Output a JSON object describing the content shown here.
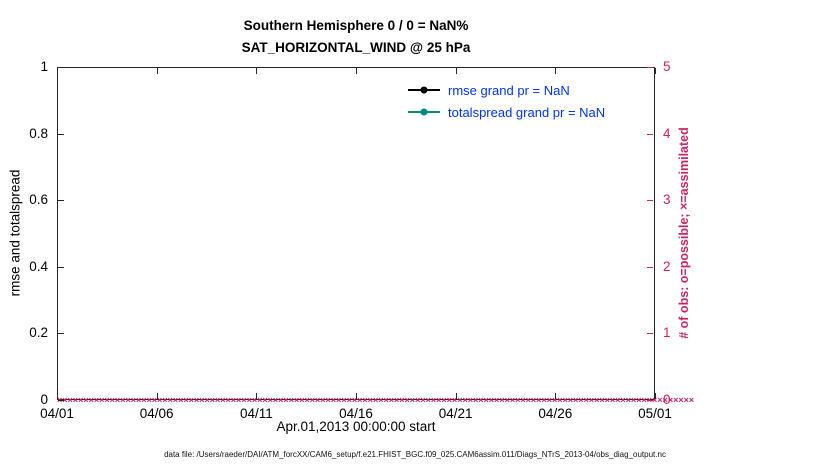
{
  "title": {
    "line1": "Southern Hemisphere 0 / 0 = NaN%",
    "line2": "SAT_HORIZONTAL_WIND @ 25 hPa"
  },
  "colors": {
    "axis_black": "#262626",
    "obs_pink": "#cc2366",
    "legend_text_blue": "#0033ee",
    "rmse_black": "#000000",
    "totalspread_teal": "#008b80"
  },
  "legend": [
    {
      "label": "rmse grand pr = NaN",
      "color": "#000000"
    },
    {
      "label": "totalspread grand pr = NaN",
      "color": "#008b80"
    }
  ],
  "axes": {
    "left": {
      "label": "rmse and totalspread",
      "ticks": [
        "0",
        "0.2",
        "0.4",
        "0.6",
        "0.8",
        "1"
      ],
      "range": [
        0,
        1
      ]
    },
    "right": {
      "label": "# of obs: o=possible; ×=assimilated",
      "ticks": [
        "0",
        "1",
        "2",
        "3",
        "4",
        "5"
      ],
      "range": [
        0,
        5
      ]
    },
    "x": {
      "label": "Apr.01,2013 00:00:00 start",
      "ticks": [
        "04/01",
        "04/06",
        "04/11",
        "04/16",
        "04/21",
        "04/26",
        "05/01"
      ]
    }
  },
  "footer": "data file: /Users/raeder/DAI/ATM_forcXX/CAM6_setup/f.e21.FHIST_BGC.f09_025.CAM6assim.011/Diags_NTrS_2013-04/obs_diag_output.nc",
  "chart_data": {
    "type": "line",
    "title": "Southern Hemisphere 0 / 0 = NaN% — SAT_HORIZONTAL_WIND @ 25 hPa",
    "xlabel": "Apr.01,2013 00:00:00 start",
    "ylabel_left": "rmse and totalspread",
    "ylabel_right": "# of obs: o=possible; ×=assimilated",
    "x_tick_labels": [
      "04/01",
      "04/06",
      "04/11",
      "04/16",
      "04/21",
      "04/26",
      "05/01"
    ],
    "ylim_left": [
      0,
      1
    ],
    "ylim_right": [
      0,
      5
    ],
    "grid": false,
    "legend_position": "upper center-right, inside plot",
    "series": [
      {
        "name": "rmse",
        "axis": "left",
        "color": "#000000",
        "values": [],
        "note": "all values NaN — nothing plotted"
      },
      {
        "name": "totalspread",
        "axis": "left",
        "color": "#008b80",
        "values": [],
        "note": "all values NaN — nothing plotted"
      }
    ],
    "obs_markers": {
      "description": "possible (o) and assimilated (×) observation counts, all equal 0, plotted on right axis along y=0 for every observation time in April 2013",
      "symbol": "×",
      "value": 0,
      "count": 121,
      "color": "#cc2366"
    }
  }
}
